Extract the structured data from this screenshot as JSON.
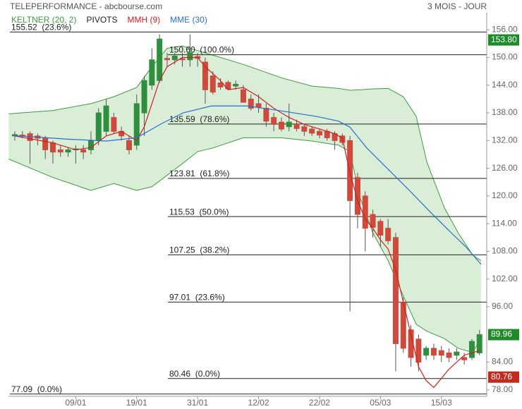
{
  "chart_data": {
    "type": "candlestick",
    "title": "TELEPERFORMANCE - abcbourse.com",
    "period": "3 MOIS - JOUR",
    "categories": [
      null,
      null,
      null,
      null,
      null,
      null,
      null,
      null,
      "09/01",
      null,
      null,
      null,
      null,
      null,
      null,
      null,
      "19/01",
      null,
      null,
      null,
      null,
      null,
      null,
      null,
      "31/01",
      null,
      null,
      null,
      null,
      null,
      null,
      null,
      "12/02",
      null,
      null,
      null,
      null,
      null,
      null,
      null,
      "22/02",
      null,
      null,
      null,
      null,
      null,
      null,
      null,
      "05/03",
      null,
      null,
      null,
      null,
      null,
      null,
      null,
      "15/03",
      null,
      null,
      null,
      null,
      null
    ],
    "open": [
      133,
      133.2,
      133.5,
      133,
      132.5,
      131.5,
      130,
      129.5,
      130,
      130,
      130,
      132,
      134,
      137,
      134,
      132,
      131,
      138,
      144,
      145,
      149.8,
      149.5,
      149.7,
      149.5,
      150.2,
      149,
      146,
      144.5,
      144.6,
      143.8,
      143,
      141,
      140,
      139,
      137,
      136,
      135,
      135.5,
      135,
      134.5,
      134,
      134,
      133.5,
      133,
      132,
      124,
      120,
      116,
      114.5,
      113,
      111,
      97,
      91,
      89,
      85.5,
      87,
      86.5,
      86,
      85.5,
      85,
      85,
      86
    ],
    "high": [
      134,
      134,
      134,
      133.5,
      133,
      132,
      131,
      130.5,
      131,
      131,
      134,
      139,
      141,
      138,
      135,
      133,
      142,
      146,
      152,
      155,
      151,
      151,
      151,
      155,
      151,
      150,
      147,
      145.5,
      145,
      145,
      144,
      142,
      142,
      140,
      138,
      137,
      140,
      136.5,
      135.5,
      135,
      134.5,
      134.5,
      134,
      133.5,
      133,
      125,
      121,
      117,
      115,
      115,
      112,
      98,
      92,
      90,
      87.5,
      88,
      87.5,
      87,
      87,
      86,
      89,
      91
    ],
    "low": [
      132,
      132.5,
      127,
      131,
      128,
      127,
      128.5,
      128.5,
      127,
      128,
      129,
      131,
      133,
      133.5,
      132,
      129,
      130,
      133,
      143,
      144.5,
      148,
      148.5,
      148,
      148,
      148,
      140,
      142,
      143,
      143,
      143,
      141,
      138.5,
      138,
      135,
      134,
      134,
      134,
      134,
      133,
      133,
      132.5,
      132,
      130,
      131,
      95,
      113,
      108,
      111,
      109,
      109.5,
      82,
      86,
      83,
      82,
      84.5,
      84.5,
      84,
      84,
      84.5,
      83.5,
      84.5,
      85.5
    ],
    "close": [
      133.3,
      133,
      132,
      132.5,
      130,
      129.5,
      129.5,
      130,
      130.2,
      129.5,
      132,
      138,
      139.5,
      134,
      133,
      130,
      140,
      145,
      149.5,
      154,
      149.5,
      150.3,
      149.5,
      151,
      149.8,
      143,
      142.5,
      143.6,
      143.2,
      144.2,
      140.3,
      139,
      139.2,
      136.2,
      135.5,
      134.5,
      136,
      134.6,
      134,
      133.6,
      133.2,
      132.6,
      132,
      131.6,
      119,
      116,
      113,
      113.2,
      111.5,
      110.3,
      88,
      87,
      85,
      84,
      87,
      85.5,
      85.5,
      85,
      86.2,
      84.5,
      88.5,
      89.96
    ],
    "up_color": "#2f8f3f",
    "down_color": "#cf4a3c",
    "xlim": [
      -0.83,
      61.95
    ],
    "ylim": [
      76.6,
      159.7
    ],
    "yticks": [
      {
        "value": 156,
        "label": "156.00"
      },
      {
        "value": 150,
        "label": "150.00"
      },
      {
        "value": 144,
        "label": "144.00"
      },
      {
        "value": 138,
        "label": "138.00"
      },
      {
        "value": 132,
        "label": "132.00"
      },
      {
        "value": 126,
        "label": "126.00"
      },
      {
        "value": 120,
        "label": "120.00"
      },
      {
        "value": 114,
        "label": "114.00"
      },
      {
        "value": 108,
        "label": "108.00"
      },
      {
        "value": 102,
        "label": "102.00"
      },
      {
        "value": 96,
        "label": "96.00"
      },
      {
        "value": 84,
        "label": "84.00"
      },
      {
        "value": 78,
        "label": "78.00"
      }
    ],
    "keltner": {
      "name": "KELTNER (20, 2)",
      "color": "#3f9a3f",
      "fill": "#d3ebd0",
      "x": [
        -0.8,
        5,
        10,
        13,
        16,
        18,
        20,
        22,
        24,
        26,
        30,
        35,
        39,
        42.5,
        44,
        45.3,
        47,
        49,
        51,
        52.7,
        54.1,
        56.4,
        58.2,
        60.1,
        61.2
      ],
      "upper": [
        137.8,
        138.5,
        140,
        141.5,
        143.5,
        148,
        152,
        152.5,
        151.5,
        150.5,
        148.5,
        145.6,
        143.8,
        143.3,
        142.9,
        143,
        143.2,
        143.3,
        141.5,
        137.2,
        127.3,
        117.4,
        112,
        107.2,
        106
      ],
      "lower": [
        128,
        124,
        121.2,
        122.7,
        121.2,
        122,
        124.5,
        127,
        129.6,
        130.4,
        132.6,
        132.6,
        131.9,
        131,
        129.6,
        119.7,
        112,
        106,
        98.3,
        92.2,
        90.7,
        89.1,
        87,
        86.1,
        89.1
      ]
    },
    "pivots": {
      "name": "PIVOTS",
      "color": "#222222",
      "levels": [
        {
          "value": 155.52,
          "label": "155.52  (23.6%)"
        },
        {
          "value": 150.6,
          "label": "150.60  (100.0%)"
        },
        {
          "value": 135.59,
          "label": "135.59  (78.6%)"
        },
        {
          "value": 123.81,
          "label": "123.81  (61.8%)"
        },
        {
          "value": 115.53,
          "label": "115.53  (50.0%)"
        },
        {
          "value": 107.25,
          "label": "107.25  (38.2%)"
        },
        {
          "value": 97.01,
          "label": "97.01  (23.6%)"
        },
        {
          "value": 80.46,
          "label": "80.46  (0.0%)"
        },
        {
          "value": 77.09,
          "label": "77.09  (0.0%)"
        }
      ]
    },
    "series": [
      {
        "name": "MMH (9)",
        "color": "#cc2020",
        "x": [
          0,
          5,
          8,
          10,
          12,
          14,
          15,
          16,
          17,
          18,
          19,
          20,
          22,
          24,
          25,
          27,
          28,
          30,
          32,
          34,
          36,
          38,
          40,
          42,
          43,
          44,
          45,
          46,
          47,
          48,
          49,
          50,
          51,
          52,
          53,
          54,
          55,
          56,
          57,
          58,
          59,
          60,
          61
        ],
        "values": [
          133,
          131.5,
          130,
          130.5,
          133,
          134,
          133,
          132,
          135,
          140,
          145,
          148,
          150,
          150,
          148,
          145,
          143,
          143.5,
          141.5,
          139,
          137,
          135.5,
          134.5,
          133.5,
          132.5,
          125,
          119,
          115,
          113,
          110.5,
          108.5,
          104,
          97,
          90,
          83,
          80,
          78.5,
          80.5,
          82.5,
          84,
          85.5,
          86,
          86.5
        ]
      },
      {
        "name": "MME (30)",
        "color": "#2a6fcf",
        "x": [
          -0.3,
          7,
          12,
          16,
          19.3,
          22.1,
          25.8,
          30.5,
          35.1,
          39.7,
          42.5,
          44,
          46.2,
          49,
          51.8,
          54.5,
          57.3,
          59.2,
          61.2
        ],
        "values": [
          133.1,
          132.3,
          131.9,
          132.6,
          135.7,
          138,
          139.5,
          139.5,
          138.4,
          137.2,
          136.2,
          134.9,
          130.4,
          125.8,
          121.2,
          116.6,
          112,
          109,
          105.2
        ]
      }
    ],
    "price_tags": [
      {
        "value": 153.8,
        "label": "153.80",
        "color": "#1e8a2a"
      },
      {
        "value": 89.96,
        "label": "89.96",
        "color": "#1e8a2a"
      },
      {
        "value": 80.76,
        "label": "80.76",
        "color": "#c42a1e"
      }
    ]
  }
}
